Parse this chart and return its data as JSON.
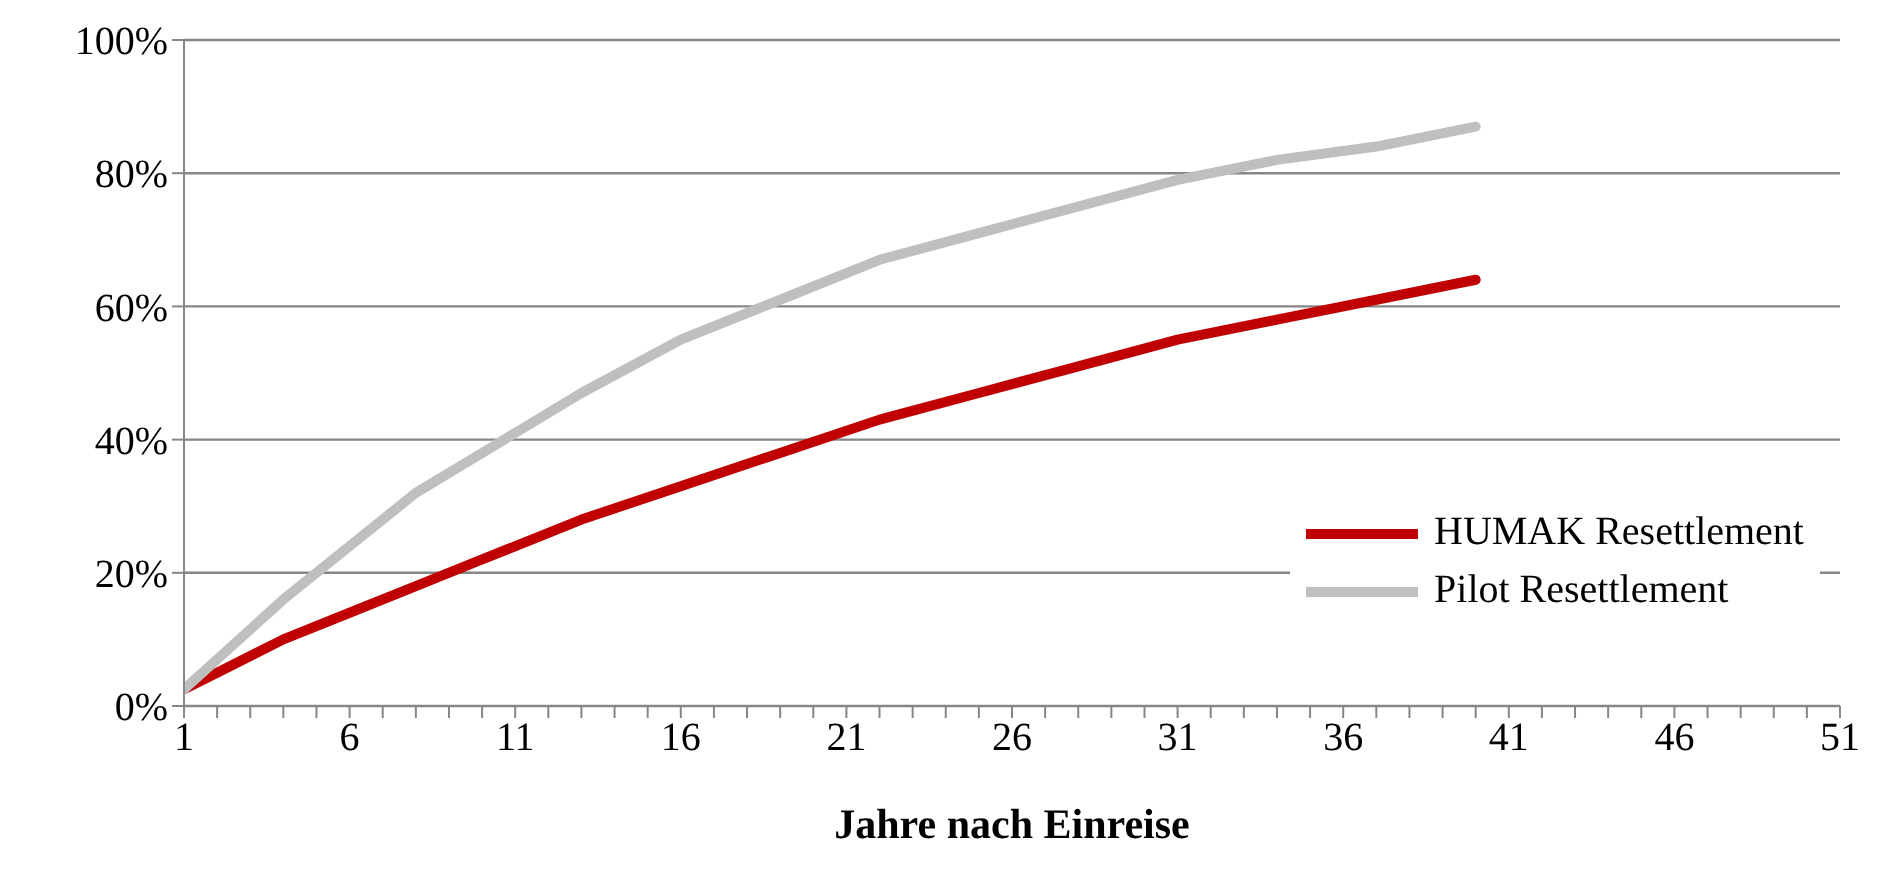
{
  "chart_data": {
    "type": "line",
    "xlabel": "Jahre nach Einreise",
    "x": [
      1,
      2,
      4,
      6,
      8,
      10,
      13,
      16,
      19,
      22,
      25,
      28,
      31,
      34,
      37,
      40
    ],
    "series": [
      {
        "name": "HUMAK Resettlement",
        "color": "#c00000",
        "values": [
          2.5,
          5,
          10,
          14,
          18,
          22,
          28,
          33,
          38,
          43,
          47,
          51,
          55,
          58,
          61,
          64
        ]
      },
      {
        "name": "Pilot Resettlement",
        "color": "#bfbfbf",
        "values": [
          2.5,
          7,
          16,
          24,
          32,
          38,
          47,
          55,
          61,
          67,
          71,
          75,
          79,
          82,
          84,
          87
        ]
      }
    ],
    "xlim": [
      1,
      51
    ],
    "xticks": [
      1,
      {
        "value": 2,
        "label": null
      },
      {
        "value": 3,
        "label": null
      },
      {
        "value": 4,
        "label": null
      },
      {
        "value": 5,
        "label": null
      },
      6,
      {
        "value": 7,
        "label": null
      },
      {
        "value": 8,
        "label": null
      },
      {
        "value": 9,
        "label": null
      },
      {
        "value": 10,
        "label": null
      },
      11,
      {
        "value": 12,
        "label": null
      },
      {
        "value": 13,
        "label": null
      },
      {
        "value": 14,
        "label": null
      },
      {
        "value": 15,
        "label": null
      },
      16,
      {
        "value": 17,
        "label": null
      },
      {
        "value": 18,
        "label": null
      },
      {
        "value": 19,
        "label": null
      },
      {
        "value": 20,
        "label": null
      },
      21,
      {
        "value": 22,
        "label": null
      },
      {
        "value": 23,
        "label": null
      },
      {
        "value": 24,
        "label": null
      },
      {
        "value": 25,
        "label": null
      },
      26,
      {
        "value": 27,
        "label": null
      },
      {
        "value": 28,
        "label": null
      },
      {
        "value": 29,
        "label": null
      },
      {
        "value": 30,
        "label": null
      },
      31,
      {
        "value": 32,
        "label": null
      },
      {
        "value": 33,
        "label": null
      },
      {
        "value": 34,
        "label": null
      },
      {
        "value": 35,
        "label": null
      },
      36,
      {
        "value": 37,
        "label": null
      },
      {
        "value": 38,
        "label": null
      },
      {
        "value": 39,
        "label": null
      },
      {
        "value": 40,
        "label": null
      },
      41,
      {
        "value": 42,
        "label": null
      },
      {
        "value": 43,
        "label": null
      },
      {
        "value": 44,
        "label": null
      },
      {
        "value": 45,
        "label": null
      },
      46,
      {
        "value": 47,
        "label": null
      },
      {
        "value": 48,
        "label": null
      },
      {
        "value": 49,
        "label": null
      },
      {
        "value": 50,
        "label": null
      },
      51
    ],
    "ylim": [
      0,
      100
    ],
    "yticks": [
      {
        "value": 0,
        "label": "0%"
      },
      {
        "value": 20,
        "label": "20%"
      },
      {
        "value": 40,
        "label": "40%"
      },
      {
        "value": 60,
        "label": "60%"
      },
      {
        "value": 80,
        "label": "80%"
      },
      {
        "value": 100,
        "label": "100%"
      }
    ],
    "grid": "y",
    "legend": "bottom right",
    "marker": "none",
    "line_style": "solid"
  }
}
